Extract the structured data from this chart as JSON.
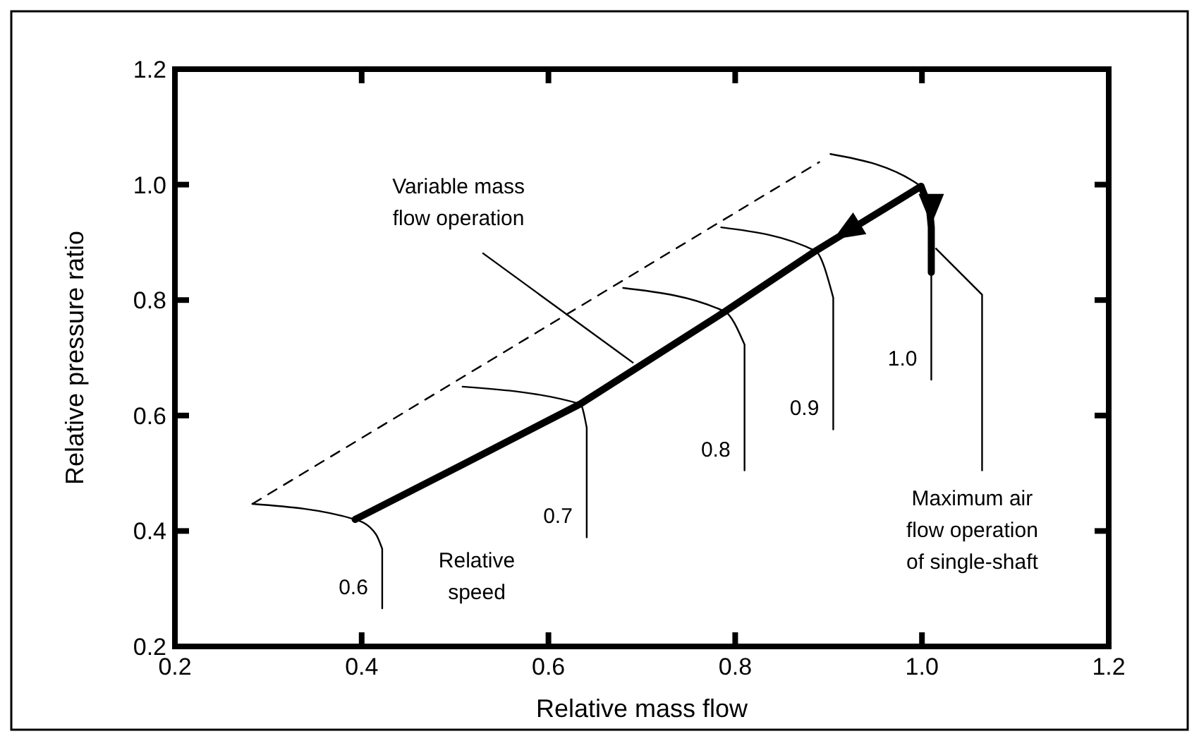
{
  "chart_data": {
    "type": "line",
    "xlabel": "Relative mass flow",
    "ylabel": "Relative pressure ratio",
    "xlim": [
      0.2,
      1.2
    ],
    "xticks": [
      0.2,
      0.4,
      0.6,
      0.8,
      {
        "value": 1,
        "label": "1.0"
      },
      1.2
    ],
    "ylim": [
      0.2,
      1.2
    ],
    "yticks": [
      0.2,
      0.4,
      0.6,
      0.8,
      {
        "value": 1,
        "label": "1.0"
      },
      1.2
    ],
    "grid": false,
    "series": [
      {
        "color": "#000000",
        "line_style": "dashed",
        "x": [
          0.283,
          0.89
        ],
        "values": [
          0.447,
          1.039
        ]
      },
      {
        "color": "#000000",
        "line_style": "solid",
        "x": [
          0.393,
          0.508,
          0.634,
          0.789,
          0.886,
          0.999
        ],
        "values": [
          0.42,
          0.515,
          0.62,
          0.78,
          0.885,
          0.997
        ]
      },
      {
        "color": "#000000",
        "line_style": "solid",
        "x": [
          0.999,
          1.008,
          1.01,
          1.01
        ],
        "values": [
          0.997,
          0.96,
          0.926,
          0.848
        ]
      },
      {
        "name": "0.6",
        "color": "#000000",
        "line_style": "solid",
        "x": [
          0.283,
          0.393,
          0.415,
          0.422,
          0.422
        ],
        "values": [
          0.447,
          0.42,
          0.395,
          0.369,
          0.266
        ]
      },
      {
        "name": "0.7",
        "color": "#000000",
        "line_style": "solid",
        "x": [
          0.508,
          0.634,
          0.641,
          0.641
        ],
        "values": [
          0.65,
          0.62,
          0.579,
          0.389
        ]
      },
      {
        "name": "0.8",
        "color": "#000000",
        "line_style": "solid",
        "x": [
          0.68,
          0.789,
          0.81,
          0.81
        ],
        "values": [
          0.821,
          0.78,
          0.723,
          0.505
        ]
      },
      {
        "name": "0.9",
        "color": "#000000",
        "line_style": "solid",
        "x": [
          0.785,
          0.886,
          0.905,
          0.905
        ],
        "values": [
          0.926,
          0.885,
          0.804,
          0.576
        ]
      },
      {
        "name": "1.0",
        "color": "#000000",
        "line_style": "solid",
        "x": [
          0.902,
          0.999,
          1.01,
          1.01
        ],
        "values": [
          1.053,
          0.997,
          0.926,
          0.662
        ]
      }
    ],
    "annotations": [
      {
        "text": "Variable mass\nflow operation",
        "x": 0.691,
        "y": 0.691
      },
      {
        "text": "Maximum air\nflow operation\nof single-shaft",
        "x": 1.01,
        "y": 0.89
      },
      "Relative\nspeed"
    ]
  }
}
